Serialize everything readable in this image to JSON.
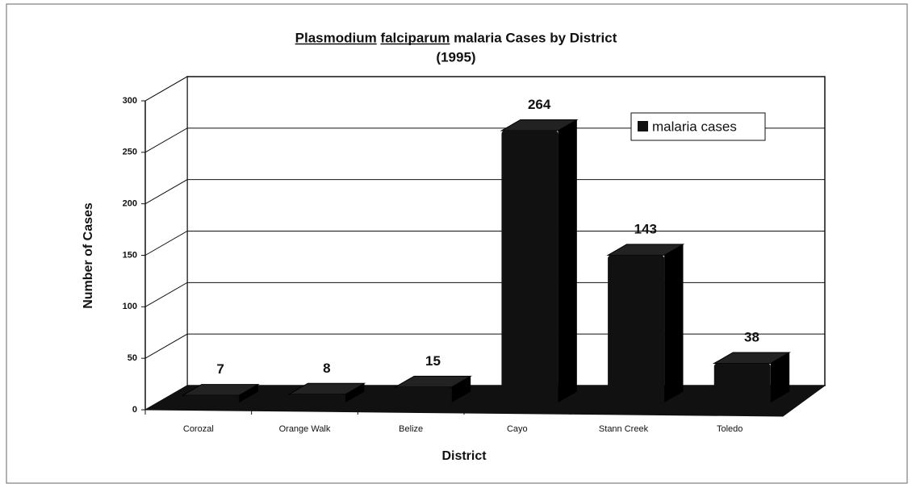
{
  "chart_data": {
    "type": "bar3d",
    "title": "Plasmodium falciparum malaria Cases by District",
    "subtitle": "(1995)",
    "x_label": "District",
    "y_label": "Number of Cases",
    "categories": [
      "Corozal",
      "Orange Walk",
      "Belize",
      "Cayo",
      "Stann Creek",
      "Toledo"
    ],
    "series": [
      {
        "name": "malaria cases",
        "color": "#111111",
        "values": [
          7,
          8,
          15,
          264,
          143,
          38
        ]
      }
    ],
    "ylim": [
      0,
      300
    ],
    "yticks": [
      0,
      50,
      100,
      150,
      200,
      250,
      300
    ],
    "grid": true,
    "legend": "upper right",
    "data_labels": true
  }
}
